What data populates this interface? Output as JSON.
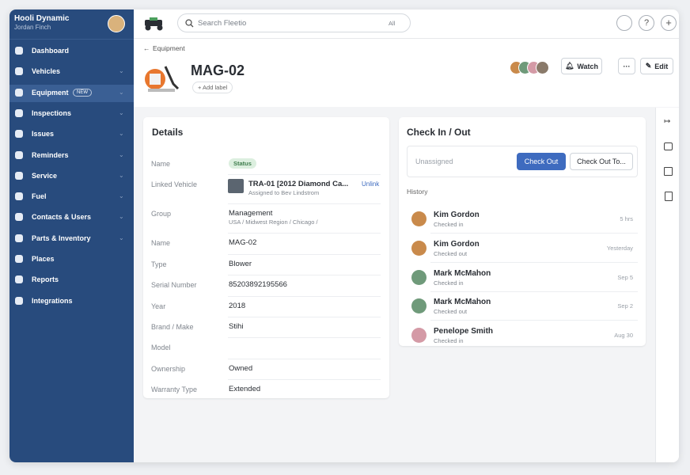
{
  "sidebar": {
    "org": "Hooli Dynamic",
    "user": "Jordan Finch",
    "items": [
      {
        "label": "Dashboard"
      },
      {
        "label": "Vehicles",
        "expandable": true
      },
      {
        "label": "Equipment",
        "expandable": true,
        "active": true,
        "badge": "NEW"
      },
      {
        "label": "Inspections",
        "expandable": true
      },
      {
        "label": "Issues",
        "expandable": true
      },
      {
        "label": "Reminders",
        "expandable": true
      },
      {
        "label": "Service",
        "expandable": true
      },
      {
        "label": "Fuel",
        "expandable": true
      },
      {
        "label": "Contacts & Users",
        "expandable": true
      },
      {
        "label": "Parts & Inventory",
        "expandable": true
      },
      {
        "label": "Places"
      },
      {
        "label": "Reports"
      },
      {
        "label": "Integrations"
      }
    ]
  },
  "topbar": {
    "search_placeholder": "Search Fleetio",
    "search_scope": "All"
  },
  "header": {
    "breadcrumb": "Equipment",
    "title": "MAG-02",
    "add_label": "+ Add label",
    "watch": "Watch",
    "edit": "Edit"
  },
  "details": {
    "title": "Details",
    "rows": [
      {
        "label": "Name",
        "value": "Status",
        "badge": true
      },
      {
        "label": "Linked Vehicle",
        "value": "TRA-01 [2012 Diamond Ca...",
        "sub": "Assigned to Bev Lindstrom",
        "action": "Unlink"
      },
      {
        "label": "Group",
        "value": "Management",
        "sub": "USA / Midwest Region / Chicago /"
      },
      {
        "label": "Name",
        "value": "MAG-02"
      },
      {
        "label": "Type",
        "value": "Blower"
      },
      {
        "label": "Serial Number",
        "value": "85203892195566"
      },
      {
        "label": "Year",
        "value": "2018"
      },
      {
        "label": "Brand / Make",
        "value": "Stihi"
      },
      {
        "label": "Model"
      },
      {
        "label": "Ownership",
        "value": "Owned"
      },
      {
        "label": "Warranty Type",
        "value": "Extended"
      }
    ]
  },
  "checkin": {
    "title": "Check In / Out",
    "assignee_placeholder": "Unassigned",
    "check_out": "Check Out",
    "check_out_to": "Check Out To...",
    "history_label": "History",
    "history": [
      {
        "name": "Kim Gordon",
        "status": "Checked in",
        "time": "5 hrs",
        "color": "#c98a4b"
      },
      {
        "name": "Kim Gordon",
        "status": "Checked out",
        "time": "Yesterday",
        "color": "#c98a4b"
      },
      {
        "name": "Mark McMahon",
        "status": "Checked in",
        "time": "Sep 5",
        "color": "#6f9a7a"
      },
      {
        "name": "Mark McMahon",
        "status": "Checked out",
        "time": "Sep 2",
        "color": "#6f9a7a"
      },
      {
        "name": "Penelope Smith",
        "status": "Checked in",
        "time": "Aug 30",
        "color": "#d49aa6"
      }
    ]
  }
}
